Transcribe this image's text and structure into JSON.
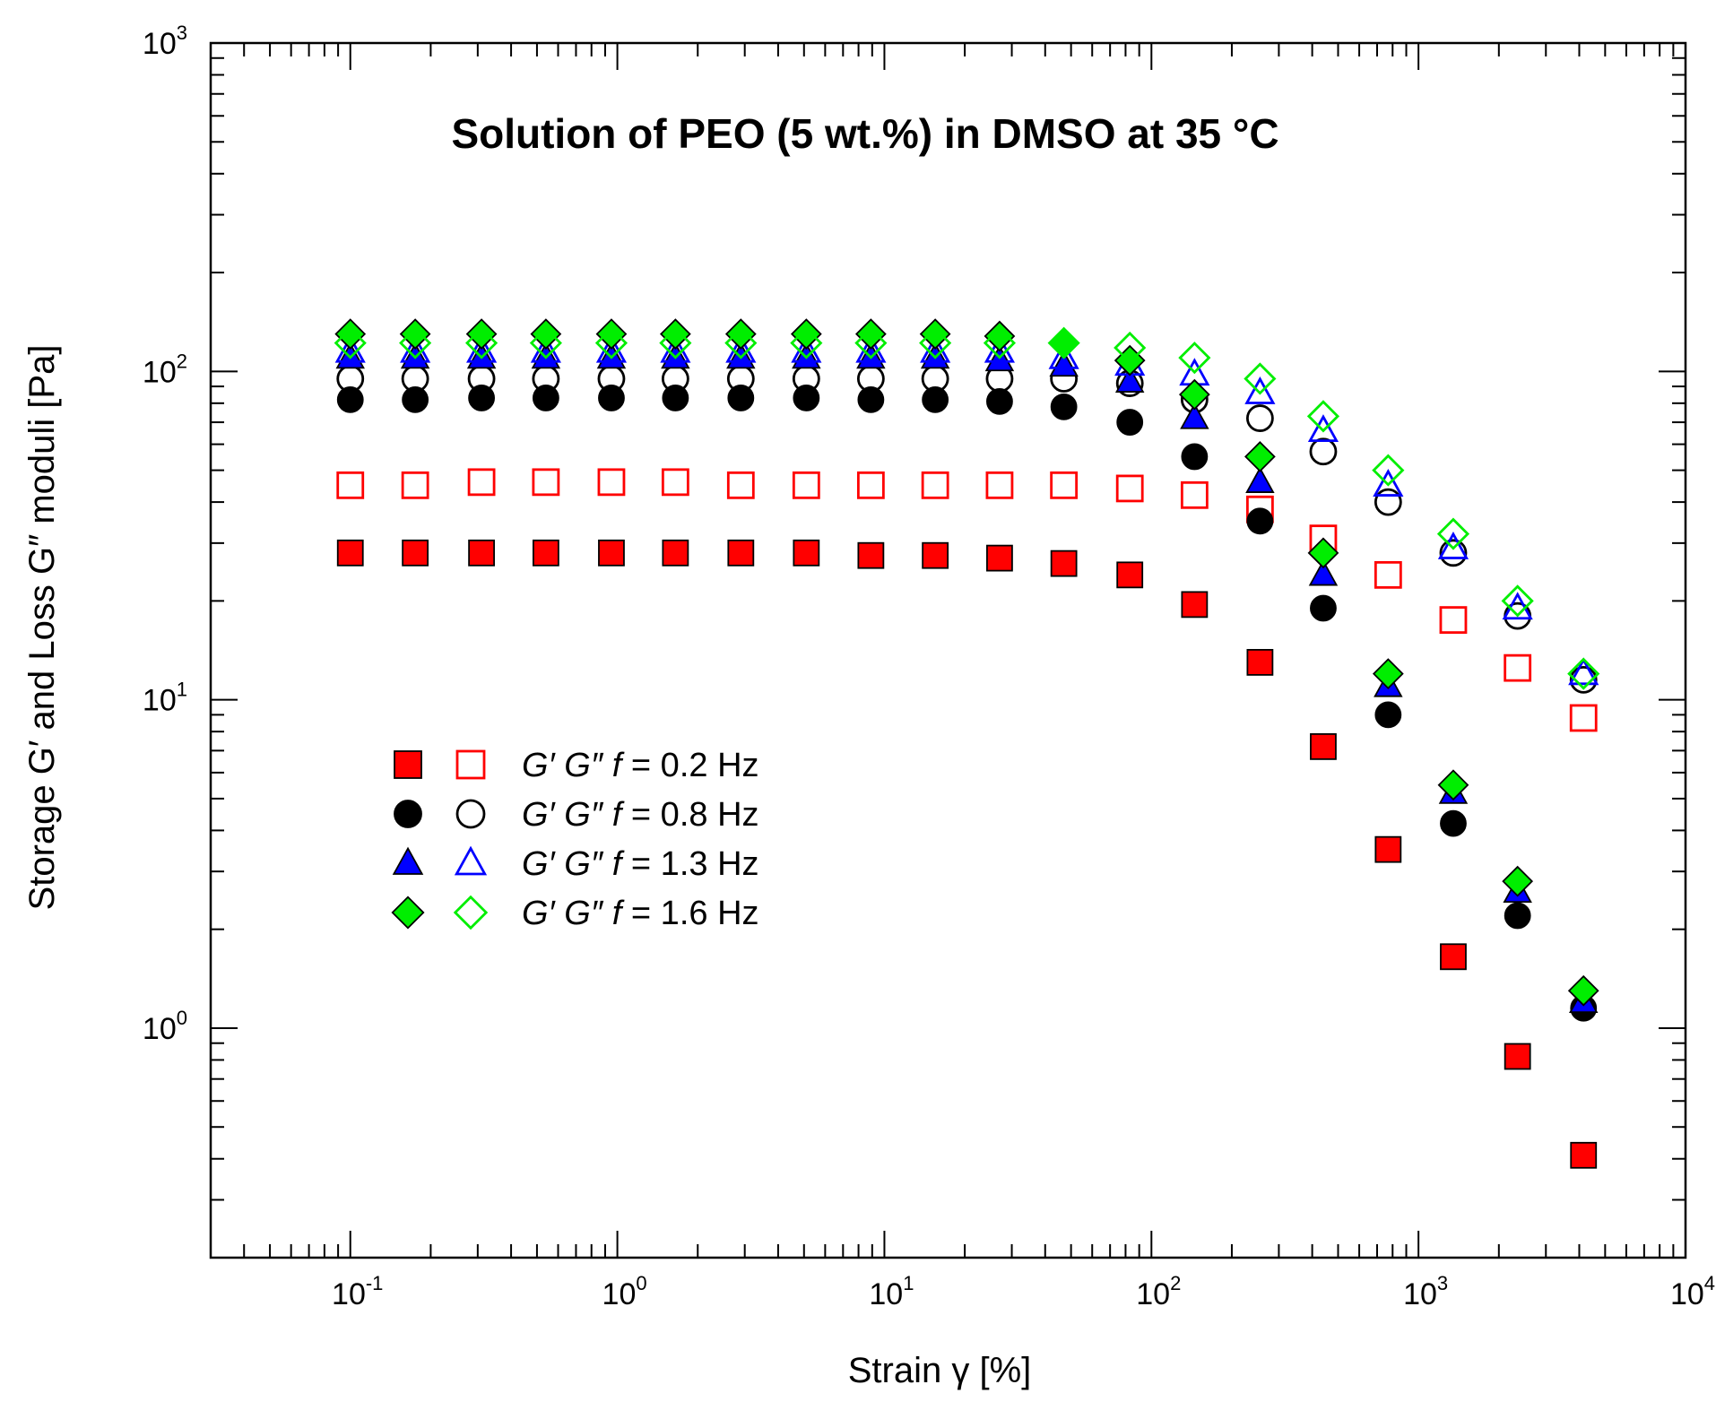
{
  "chart_data": {
    "type": "scatter",
    "title": "Solution of PEO (5 wt.%) in DMSO at 35 °C",
    "xlabel": "Strain γ [%]",
    "ylabel": "Storage G′ and Loss G″ moduli [Pa]",
    "xscale": "log",
    "yscale": "log",
    "xlim": [
      0.03,
      10000
    ],
    "ylim": [
      0.2,
      1000
    ],
    "grid": false,
    "legend_position": "center-left",
    "x_ticks": [
      {
        "base": "10",
        "exp": "-1",
        "value": 0.1
      },
      {
        "base": "10",
        "exp": "0",
        "value": 1
      },
      {
        "base": "10",
        "exp": "1",
        "value": 10
      },
      {
        "base": "10",
        "exp": "2",
        "value": 100
      },
      {
        "base": "10",
        "exp": "3",
        "value": 1000
      },
      {
        "base": "10",
        "exp": "4",
        "value": 10000
      }
    ],
    "y_ticks": [
      {
        "base": "10",
        "exp": "0",
        "value": 1
      },
      {
        "base": "10",
        "exp": "1",
        "value": 10
      },
      {
        "base": "10",
        "exp": "2",
        "value": 100
      },
      {
        "base": "10",
        "exp": "3",
        "value": 1000
      }
    ],
    "x": [
      0.1,
      0.175,
      0.31,
      0.54,
      0.95,
      1.65,
      2.9,
      5.1,
      8.9,
      15.5,
      27,
      47,
      83,
      145,
      255,
      440,
      770,
      1350,
      2350,
      4150
    ],
    "series": [
      {
        "name": "G′ f = 0.2 Hz",
        "modulus": "G′",
        "freq_label": "= 0.2 Hz",
        "marker": "square",
        "filled": true,
        "color": "#ff0000",
        "values": [
          28,
          28,
          28,
          28,
          28,
          28,
          28,
          28,
          27.5,
          27.5,
          27,
          26,
          24,
          19.5,
          13,
          7.2,
          3.5,
          1.65,
          0.82,
          0.41
        ]
      },
      {
        "name": "G″ f = 0.2 Hz",
        "modulus": "G″",
        "freq_label": "= 0.2 Hz",
        "marker": "square",
        "filled": false,
        "color": "#ff0000",
        "values": [
          45,
          45,
          46,
          46,
          46,
          46,
          45,
          45,
          45,
          45,
          45,
          45,
          44,
          42,
          38,
          31,
          24,
          17.5,
          12.5,
          8.8
        ]
      },
      {
        "name": "G′ f = 0.8 Hz",
        "modulus": "G′",
        "freq_label": "= 0.8 Hz",
        "marker": "circle",
        "filled": true,
        "color": "#000000",
        "values": [
          82,
          82,
          83,
          83,
          83,
          83,
          83,
          83,
          82,
          82,
          81,
          78,
          70,
          55,
          35,
          19,
          9,
          4.2,
          2.2,
          1.15
        ]
      },
      {
        "name": "G″ f = 0.8 Hz",
        "modulus": "G″",
        "freq_label": "= 0.8 Hz",
        "marker": "circle",
        "filled": false,
        "color": "#000000",
        "values": [
          95,
          95,
          95,
          95,
          95,
          95,
          95,
          95,
          95,
          95,
          95,
          95,
          92,
          82,
          72,
          57,
          40,
          28,
          18,
          11.5
        ]
      },
      {
        "name": "G′ f = 1.3 Hz",
        "modulus": "G′",
        "freq_label": "= 1.3 Hz",
        "marker": "triangle",
        "filled": true,
        "color": "#0000ff",
        "values": [
          110,
          110,
          110,
          110,
          110,
          110,
          110,
          110,
          110,
          110,
          108,
          104,
          93,
          72,
          46,
          24,
          11,
          5.2,
          2.6,
          1.2
        ]
      },
      {
        "name": "G″ f = 1.3 Hz",
        "modulus": "G″",
        "freq_label": "= 1.3 Hz",
        "marker": "triangle",
        "filled": false,
        "color": "#0000ff",
        "values": [
          115,
          115,
          115,
          115,
          115,
          115,
          115,
          115,
          115,
          115,
          115,
          110,
          105,
          98,
          86,
          66,
          45,
          29,
          19,
          12
        ]
      },
      {
        "name": "G′ f = 1.6 Hz",
        "modulus": "G′",
        "freq_label": "= 1.6 Hz",
        "marker": "diamond",
        "filled": true,
        "color": "#00ee00",
        "values": [
          130,
          130,
          130,
          130,
          130,
          130,
          130,
          130,
          130,
          130,
          128,
          122,
          108,
          85,
          55,
          28,
          12,
          5.5,
          2.8,
          1.3
        ]
      },
      {
        "name": "G″ f = 1.6 Hz",
        "modulus": "G″",
        "freq_label": "= 1.6 Hz",
        "marker": "diamond",
        "filled": false,
        "color": "#00ee00",
        "values": [
          122,
          122,
          122,
          122,
          122,
          122,
          122,
          122,
          122,
          122,
          122,
          122,
          118,
          110,
          95,
          73,
          50,
          32,
          20,
          12
        ]
      }
    ]
  }
}
